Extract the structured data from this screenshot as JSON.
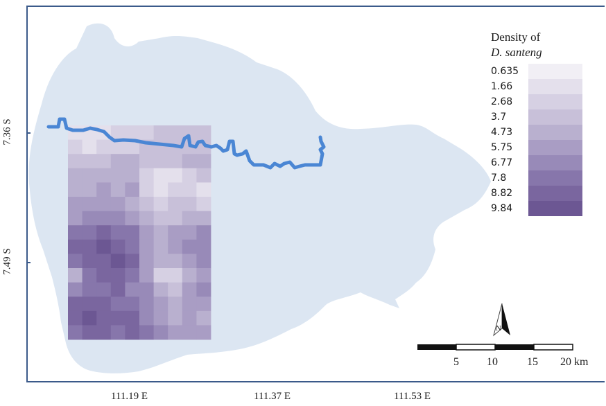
{
  "legend": {
    "title_line1": "Density of",
    "title_line2": "D. santeng",
    "items": [
      {
        "value": "0.635",
        "color": "#f1eff5"
      },
      {
        "value": "1.66",
        "color": "#e4e0ec"
      },
      {
        "value": "2.68",
        "color": "#d6d0e3"
      },
      {
        "value": "3.7",
        "color": "#c8c0d9"
      },
      {
        "value": "4.73",
        "color": "#b9b0cf"
      },
      {
        "value": "5.75",
        "color": "#a99dc4"
      },
      {
        "value": "6.77",
        "color": "#988ab8"
      },
      {
        "value": "7.8",
        "color": "#8776ab"
      },
      {
        "value": "8.82",
        "color": "#7a669f"
      },
      {
        "value": "9.84",
        "color": "#6c5793"
      }
    ]
  },
  "axes": {
    "y_labels": [
      "7.36 S",
      "7.49 S"
    ],
    "x_labels": [
      "111.19 E",
      "111.37 E",
      "111.53 E"
    ]
  },
  "north_arrow": {
    "letter": "N"
  },
  "scale_bar": {
    "labels": [
      "5",
      "10",
      "15",
      "20 km"
    ]
  },
  "colors": {
    "basin": "#dce6f2",
    "river": "#4a86d4",
    "frame": "#3b5a8a"
  },
  "density_grid": [
    [
      1,
      1,
      1,
      2,
      2,
      2,
      3,
      3,
      3,
      3
    ],
    [
      2,
      1,
      2,
      2,
      2,
      3,
      3,
      3,
      3,
      3
    ],
    [
      3,
      3,
      3,
      4,
      4,
      3,
      3,
      3,
      4,
      4
    ],
    [
      4,
      4,
      4,
      4,
      4,
      2,
      1,
      1,
      2,
      3
    ],
    [
      4,
      4,
      5,
      4,
      5,
      2,
      1,
      2,
      2,
      1
    ],
    [
      5,
      5,
      5,
      5,
      4,
      3,
      2,
      3,
      3,
      2
    ],
    [
      5,
      6,
      6,
      6,
      5,
      4,
      3,
      3,
      4,
      4
    ],
    [
      7,
      7,
      8,
      7,
      7,
      5,
      4,
      5,
      5,
      6
    ],
    [
      8,
      8,
      9,
      8,
      7,
      5,
      4,
      5,
      6,
      6
    ],
    [
      7,
      8,
      8,
      9,
      8,
      5,
      4,
      4,
      5,
      6
    ],
    [
      4,
      7,
      8,
      8,
      7,
      5,
      2,
      2,
      4,
      5
    ],
    [
      6,
      7,
      7,
      8,
      6,
      6,
      4,
      3,
      5,
      6
    ],
    [
      8,
      8,
      8,
      7,
      7,
      6,
      5,
      4,
      5,
      5
    ],
    [
      8,
      9,
      8,
      8,
      8,
      6,
      5,
      4,
      5,
      4
    ],
    [
      7,
      8,
      8,
      7,
      8,
      7,
      6,
      5,
      5,
      5
    ]
  ]
}
